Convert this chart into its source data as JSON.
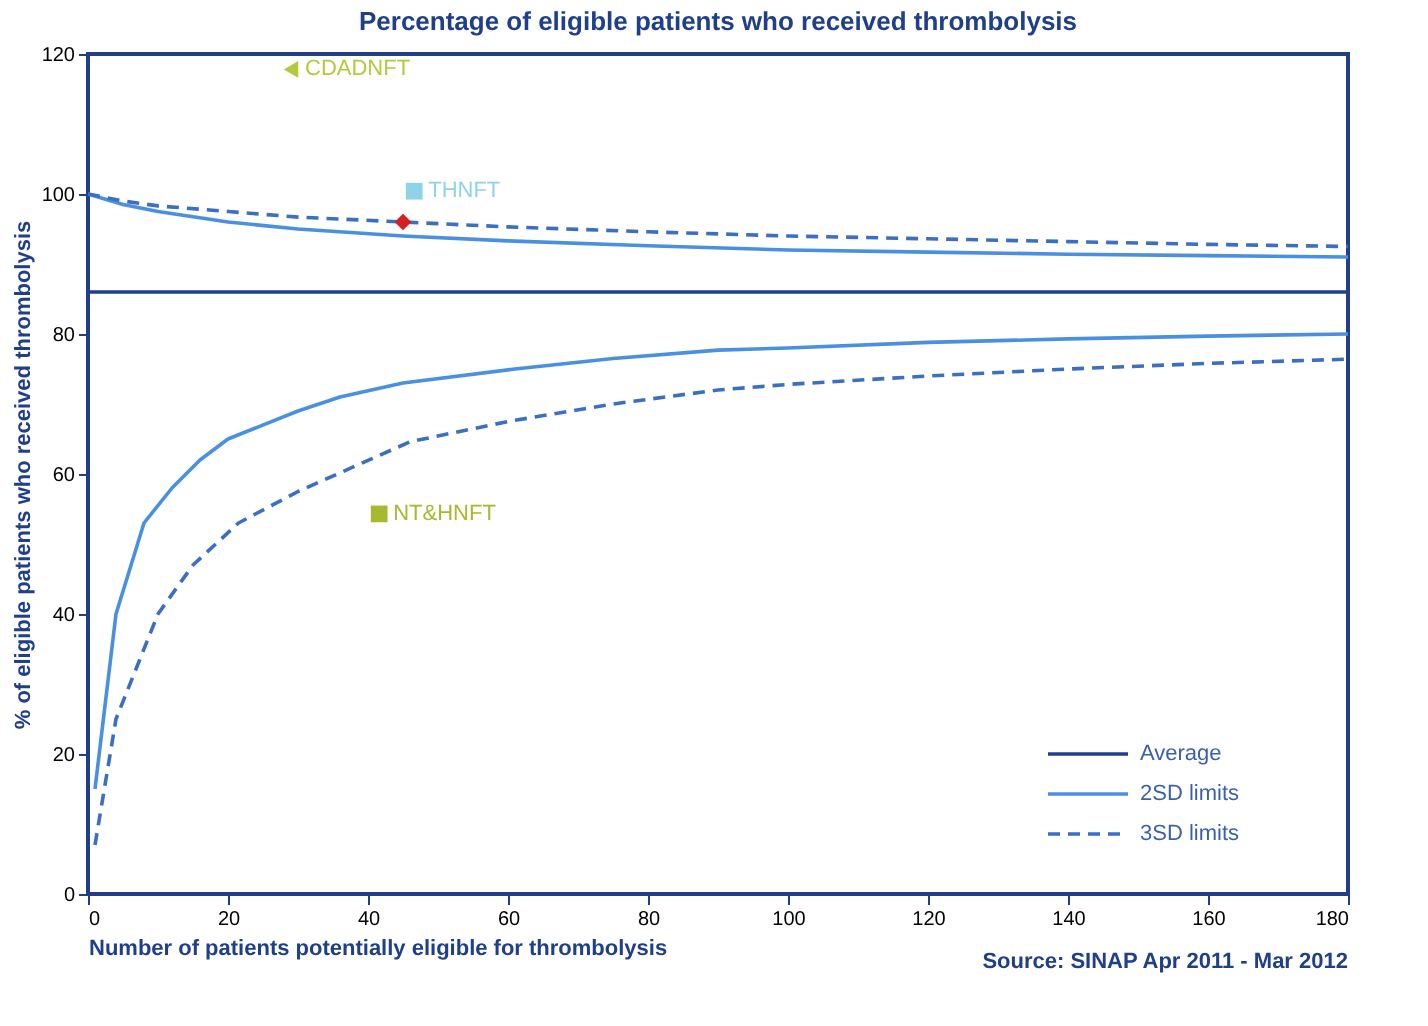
{
  "chart_data": {
    "type": "line",
    "title": "Percentage of eligible patients who received thrombolysis",
    "xlabel": "Number of patients potentially eligible for thrombolysis",
    "ylabel": "% of eligible patients who received thrombolysis",
    "xlim": [
      0,
      180
    ],
    "ylim": [
      0,
      120
    ],
    "xticks": [
      0,
      20,
      40,
      60,
      80,
      100,
      120,
      140,
      160,
      180
    ],
    "yticks": [
      0,
      20,
      40,
      60,
      80,
      100,
      120
    ],
    "grid": false,
    "legend": "bottom right",
    "annotations": [
      "Source: SINAP Apr 2011 - Mar 2012"
    ],
    "series": [
      {
        "name": "Average",
        "color": "#1f3f8a",
        "line_style": "solid",
        "x": [
          0,
          180
        ],
        "values": [
          86,
          86
        ]
      },
      {
        "name": "2SD limits",
        "color": "#4a90e2",
        "line_style": "solid",
        "x": [
          0,
          5,
          10,
          20,
          30,
          45,
          60,
          80,
          100,
          120,
          140,
          160,
          180
        ],
        "values": [
          100,
          98.5,
          97.5,
          96,
          95,
          94,
          93.3,
          92.6,
          92,
          91.7,
          91.4,
          91.2,
          91
        ]
      },
      {
        "color": "#4a90e2",
        "line_style": "solid",
        "x": [
          1,
          4,
          8,
          12,
          16,
          20,
          30,
          36,
          45,
          61,
          75,
          90,
          100,
          120,
          140,
          160,
          180
        ],
        "values": [
          15,
          40,
          53,
          58,
          62,
          65,
          69,
          71,
          73,
          75,
          76.5,
          77.7,
          78,
          78.8,
          79.3,
          79.7,
          80
        ]
      },
      {
        "name": "3SD limits",
        "color": "#3a6fc4",
        "line_style": "dashed",
        "x": [
          0,
          5,
          10,
          20,
          30,
          45,
          60,
          80,
          100,
          120,
          140,
          160,
          180
        ],
        "values": [
          100,
          99,
          98.3,
          97.5,
          96.7,
          96,
          95.3,
          94.6,
          94,
          93.6,
          93.2,
          92.8,
          92.5
        ]
      },
      {
        "color": "#3a6fc4",
        "line_style": "dashed",
        "x": [
          1,
          4,
          10,
          15,
          21.5,
          30,
          46,
          60,
          75,
          90,
          100,
          120,
          140,
          160,
          180
        ],
        "values": [
          7,
          25,
          40,
          47,
          53,
          57.5,
          64.6,
          67.5,
          70,
          72,
          72.8,
          74,
          75,
          75.8,
          76.4
        ]
      },
      {
        "type": "scatter",
        "name": "CDADNFT",
        "color": "#b5c93a",
        "marker": "triangle",
        "x": [
          29
        ],
        "values": [
          117.8
        ]
      },
      {
        "type": "scatter",
        "name": "THNFT",
        "color": "#8fd3e8",
        "marker": "square",
        "x": [
          46.6
        ],
        "values": [
          100.4
        ]
      },
      {
        "type": "scatter",
        "color": "#d42020",
        "marker": "diamond",
        "x": [
          45
        ],
        "values": [
          96
        ]
      },
      {
        "type": "scatter",
        "name": "NT&HNFT",
        "color": "#a8b830",
        "marker": "square",
        "x": [
          41.6
        ],
        "values": [
          54.3
        ]
      }
    ]
  }
}
